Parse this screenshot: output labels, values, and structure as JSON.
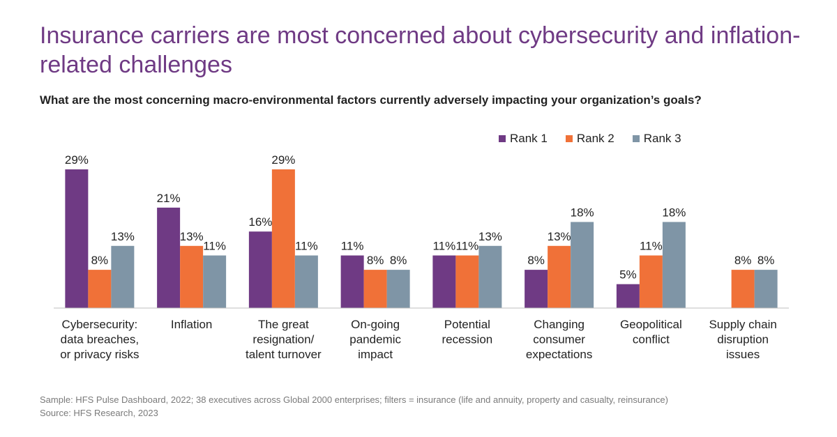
{
  "header": {
    "title": "Insurance carriers are most concerned about cybersecurity and inflation-related challenges",
    "subtitle": "What are the most concerning macro-environmental factors currently adversely impacting your organization’s goals?"
  },
  "legend": [
    {
      "label": "Rank 1",
      "color": "#6f3a84"
    },
    {
      "label": "Rank 2",
      "color": "#f07138"
    },
    {
      "label": "Rank 3",
      "color": "#7f95a6"
    }
  ],
  "chart_data": {
    "type": "bar",
    "categories": [
      [
        "Cybersecurity:",
        "data breaches,",
        "or privacy risks"
      ],
      [
        "Inflation"
      ],
      [
        "The great",
        "resignation/",
        "talent turnover"
      ],
      [
        "On-going",
        "pandemic",
        "impact"
      ],
      [
        "Potential",
        "recession"
      ],
      [
        "Changing",
        "consumer",
        "expectations"
      ],
      [
        "Geopolitical",
        "conflict"
      ],
      [
        "Supply chain",
        "disruption",
        "issues"
      ]
    ],
    "series": [
      {
        "name": "Rank 1",
        "color": "#6f3a84",
        "values": [
          29,
          21,
          16,
          11,
          11,
          8,
          5,
          null
        ],
        "labels": [
          "29%",
          "21%",
          "16%",
          "11%",
          "11%",
          "8%",
          "5%",
          ""
        ]
      },
      {
        "name": "Rank 2",
        "color": "#f07138",
        "values": [
          8,
          13,
          29,
          8,
          11,
          13,
          11,
          8
        ],
        "labels": [
          "8%",
          "13%",
          "29%",
          "8%",
          "11%",
          "13%",
          "11%",
          "8%"
        ]
      },
      {
        "name": "Rank 3",
        "color": "#7f95a6",
        "values": [
          13,
          11,
          11,
          8,
          13,
          18,
          18,
          8
        ],
        "labels": [
          "13%",
          "11%",
          "11%",
          "8%",
          "13%",
          "18%",
          "18%",
          "8%"
        ]
      }
    ],
    "ylim": [
      0,
      29
    ],
    "legend_position": "top-right",
    "grid": false
  },
  "footer": {
    "sample": "Sample: HFS Pulse Dashboard, 2022; 38 executives across Global 2000 enterprises; filters = insurance (life and annuity, property and casualty, reinsurance)",
    "source": "Source: HFS Research, 2023"
  }
}
